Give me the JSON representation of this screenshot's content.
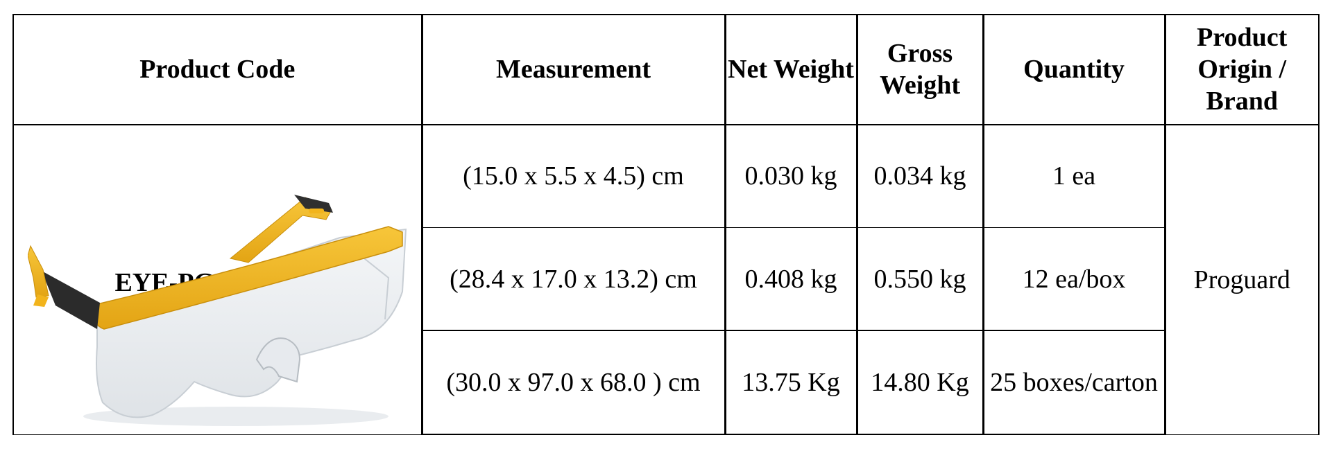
{
  "headers": {
    "product_code": "Product Code",
    "measurement": "Measurement",
    "net_weight": "Net Weight",
    "gross_weight": "Gross Weight",
    "quantity": "Quantity",
    "origin_brand": "Product Origin / Brand"
  },
  "product": {
    "code": "EYE-PG-ES46YC",
    "image": "yellow-safety-glasses",
    "brand": "Proguard"
  },
  "rows": [
    {
      "measurement": "(15.0 x 5.5 x 4.5) cm",
      "net_weight": "0.030 kg",
      "gross_weight": "0.034 kg",
      "quantity": "1 ea"
    },
    {
      "measurement": "(28.4 x 17.0 x 13.2) cm",
      "net_weight": "0.408 kg",
      "gross_weight": "0.550 kg",
      "quantity": "12 ea/box"
    },
    {
      "measurement": "(30.0 x 97.0 x 68.0 ) cm",
      "net_weight": "13.75 Kg",
      "gross_weight": "14.80 Kg",
      "quantity": "25 boxes/carton"
    }
  ],
  "colors": {
    "frame": "#F2B41C",
    "temple_tip": "#2B2B2B",
    "border": "#000000"
  }
}
